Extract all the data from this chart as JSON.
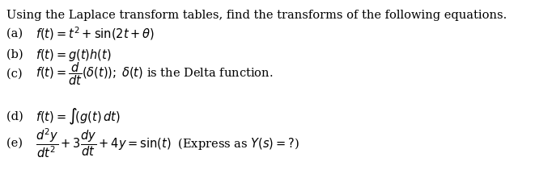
{
  "title": "Using the Laplace transform tables, find the transforms of the following equations.",
  "lines": [
    {
      "label": "(a) ",
      "math": "$f(t) = t^2 + \\sin(2t + \\theta)$"
    },
    {
      "label": "(b) ",
      "math": "$f(t) = g(t)h(t)$"
    },
    {
      "label": "(c) ",
      "math": "$f(t) = \\dfrac{d}{dt}(\\delta(t));\\; \\delta(t)$ is the Delta function."
    },
    {
      "label": "(d) ",
      "math": "$f(t) = \\int\\!(g(t)\\,dt)$"
    },
    {
      "label": "(e) ",
      "math": "$\\dfrac{d^2y}{dt^2} + 3\\dfrac{dy}{dt} + 4y = \\sin(t)\\;$ (Express as $Y(s) =?$)"
    }
  ],
  "bg_color": "#ffffff",
  "text_color": "#000000",
  "title_fontsize": 10.5,
  "body_fontsize": 10.5,
  "fig_width": 6.82,
  "fig_height": 2.16,
  "dpi": 100
}
